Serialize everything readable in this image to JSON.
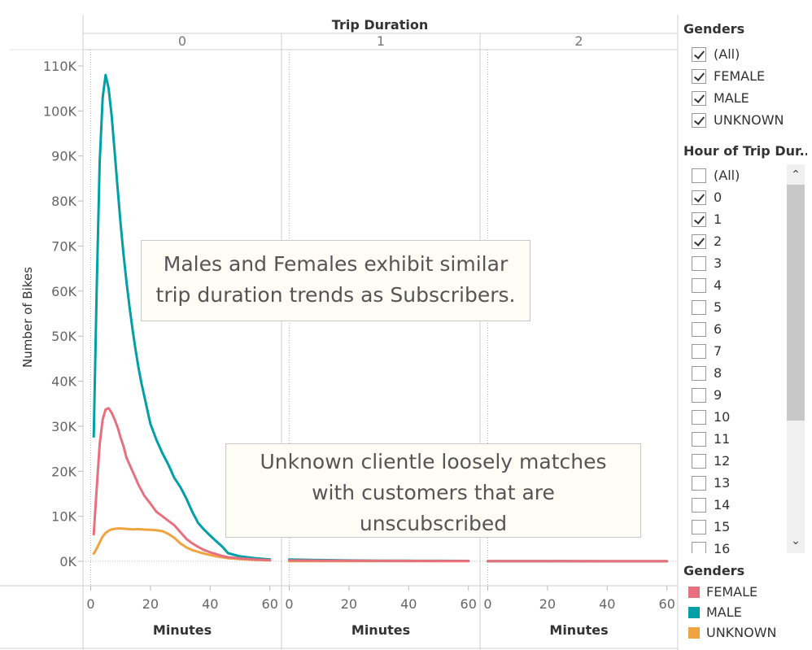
{
  "chart_data": {
    "type": "line",
    "column_header": "Trip Duration",
    "columns": [
      "0",
      "1",
      "2"
    ],
    "ylabel": "Number of Bikes",
    "xlabel": "Minutes",
    "xlim": [
      0,
      60
    ],
    "ylim": [
      0,
      110000
    ],
    "y_ticks": [
      0,
      10000,
      20000,
      30000,
      40000,
      50000,
      60000,
      70000,
      80000,
      90000,
      100000,
      110000
    ],
    "y_tick_labels": [
      "0K",
      "10K",
      "20K",
      "30K",
      "40K",
      "50K",
      "60K",
      "70K",
      "80K",
      "90K",
      "100K",
      "110K"
    ],
    "x_ticks": [
      0,
      20,
      40,
      60
    ],
    "x_tick_labels": [
      "0",
      "20",
      "40",
      "60"
    ],
    "gridlines": false,
    "series": [
      {
        "name": "MALE",
        "color": "#00a0a6",
        "panels": [
          [
            [
              1,
              27700
            ],
            [
              2,
              60000
            ],
            [
              3,
              88500
            ],
            [
              4,
              103000
            ],
            [
              5,
              108000
            ],
            [
              6,
              105000
            ],
            [
              7,
              99000
            ],
            [
              8,
              91000
            ],
            [
              9,
              83000
            ],
            [
              10,
              75000
            ],
            [
              11,
              68000
            ],
            [
              12,
              62000
            ],
            [
              13,
              56500
            ],
            [
              14,
              51500
            ],
            [
              15,
              47000
            ],
            [
              16,
              43000
            ],
            [
              17,
              39500
            ],
            [
              18,
              36500
            ],
            [
              19,
              33500
            ],
            [
              20,
              30500
            ],
            [
              22,
              27000
            ],
            [
              24,
              24000
            ],
            [
              26,
              21500
            ],
            [
              28,
              18500
            ],
            [
              30,
              16500
            ],
            [
              32,
              14000
            ],
            [
              34,
              11000
            ],
            [
              36,
              8500
            ],
            [
              38,
              7000
            ],
            [
              40,
              5700
            ],
            [
              42,
              4500
            ],
            [
              44,
              3300
            ],
            [
              46,
              1800
            ],
            [
              50,
              1100
            ],
            [
              55,
              700
            ],
            [
              60,
              400
            ]
          ],
          [
            [
              0,
              400
            ],
            [
              10,
              280
            ],
            [
              20,
              200
            ],
            [
              30,
              150
            ],
            [
              40,
              120
            ],
            [
              50,
              100
            ],
            [
              60,
              90
            ]
          ],
          [
            [
              0,
              40
            ],
            [
              20,
              30
            ],
            [
              40,
              25
            ],
            [
              60,
              20
            ]
          ]
        ]
      },
      {
        "name": "FEMALE",
        "color": "#e8707e",
        "panels": [
          [
            [
              1,
              6000
            ],
            [
              2,
              16000
            ],
            [
              3,
              26000
            ],
            [
              4,
              31500
            ],
            [
              5,
              33700
            ],
            [
              6,
              34000
            ],
            [
              7,
              33000
            ],
            [
              8,
              31500
            ],
            [
              9,
              29800
            ],
            [
              10,
              27500
            ],
            [
              11,
              25500
            ],
            [
              12,
              23000
            ],
            [
              14,
              20000
            ],
            [
              16,
              17000
            ],
            [
              18,
              14500
            ],
            [
              20,
              12800
            ],
            [
              22,
              11000
            ],
            [
              24,
              10000
            ],
            [
              26,
              9000
            ],
            [
              28,
              8000
            ],
            [
              30,
              6500
            ],
            [
              32,
              5000
            ],
            [
              34,
              4000
            ],
            [
              36,
              3200
            ],
            [
              38,
              2500
            ],
            [
              40,
              2000
            ],
            [
              42,
              1600
            ],
            [
              44,
              1200
            ],
            [
              46,
              900
            ],
            [
              50,
              650
            ],
            [
              55,
              400
            ],
            [
              60,
              250
            ]
          ],
          [
            [
              0,
              200
            ],
            [
              10,
              160
            ],
            [
              20,
              130
            ],
            [
              30,
              110
            ],
            [
              40,
              90
            ],
            [
              50,
              80
            ],
            [
              60,
              70
            ]
          ],
          [
            [
              0,
              40
            ],
            [
              20,
              30
            ],
            [
              40,
              25
            ],
            [
              60,
              20
            ]
          ]
        ]
      },
      {
        "name": "UNKNOWN",
        "color": "#f0a440",
        "panels": [
          [
            [
              1,
              1700
            ],
            [
              2,
              2800
            ],
            [
              3,
              4200
            ],
            [
              4,
              5500
            ],
            [
              5,
              6300
            ],
            [
              6,
              6800
            ],
            [
              7,
              7100
            ],
            [
              8,
              7200
            ],
            [
              9,
              7300
            ],
            [
              10,
              7300
            ],
            [
              12,
              7200
            ],
            [
              14,
              7100
            ],
            [
              16,
              7150
            ],
            [
              18,
              7050
            ],
            [
              20,
              7000
            ],
            [
              22,
              6900
            ],
            [
              24,
              6700
            ],
            [
              26,
              6100
            ],
            [
              28,
              5200
            ],
            [
              30,
              4000
            ],
            [
              32,
              3100
            ],
            [
              34,
              2500
            ],
            [
              36,
              2100
            ],
            [
              38,
              1700
            ],
            [
              40,
              1400
            ],
            [
              42,
              1100
            ],
            [
              44,
              900
            ],
            [
              46,
              700
            ],
            [
              50,
              500
            ],
            [
              55,
              300
            ],
            [
              60,
              200
            ]
          ],
          [
            [
              0,
              60
            ],
            [
              20,
              45
            ],
            [
              40,
              35
            ],
            [
              60,
              30
            ]
          ],
          [
            [
              0,
              20
            ],
            [
              60,
              15
            ]
          ]
        ]
      }
    ],
    "annotations": [
      "Males and Females exhibit similar trip duration trends as Subscribers.",
      "Unknown clientle loosely matches with customers that are unscubscribed"
    ]
  },
  "filters": {
    "genders": {
      "title": "Genders",
      "items": [
        {
          "label": "(All)",
          "checked": true
        },
        {
          "label": "FEMALE",
          "checked": true
        },
        {
          "label": "MALE",
          "checked": true
        },
        {
          "label": "UNKNOWN",
          "checked": true
        }
      ]
    },
    "hour": {
      "title": "Hour of Trip Dur..",
      "items": [
        {
          "label": "(All)",
          "checked": false
        },
        {
          "label": "0",
          "checked": true
        },
        {
          "label": "1",
          "checked": true
        },
        {
          "label": "2",
          "checked": true
        },
        {
          "label": "3",
          "checked": false
        },
        {
          "label": "4",
          "checked": false
        },
        {
          "label": "5",
          "checked": false
        },
        {
          "label": "6",
          "checked": false
        },
        {
          "label": "7",
          "checked": false
        },
        {
          "label": "8",
          "checked": false
        },
        {
          "label": "9",
          "checked": false
        },
        {
          "label": "10",
          "checked": false
        },
        {
          "label": "11",
          "checked": false
        },
        {
          "label": "12",
          "checked": false
        },
        {
          "label": "13",
          "checked": false
        },
        {
          "label": "14",
          "checked": false
        },
        {
          "label": "15",
          "checked": false
        },
        {
          "label": "16",
          "checked": false
        }
      ]
    }
  },
  "legend": {
    "title": "Genders",
    "items": [
      {
        "label": "FEMALE",
        "color": "#e8707e"
      },
      {
        "label": "MALE",
        "color": "#00a0a6"
      },
      {
        "label": "UNKNOWN",
        "color": "#f0a440"
      }
    ]
  }
}
